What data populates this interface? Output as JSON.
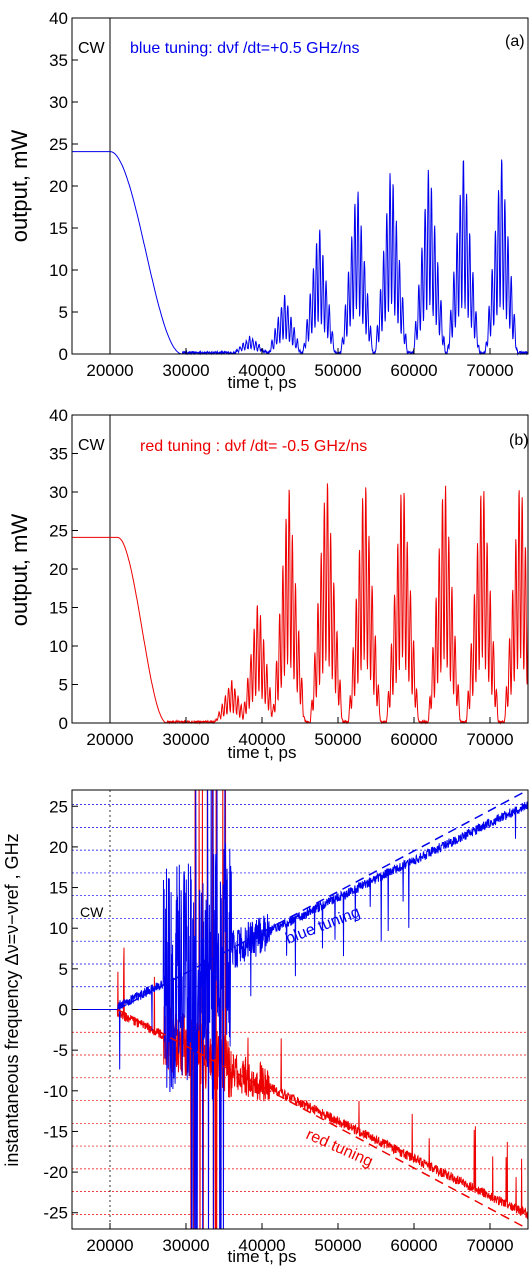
{
  "chart_data": [
    {
      "panel": "(a)",
      "type": "line",
      "xlabel": "time t, ps",
      "ylabel": "output, mW",
      "xlim": [
        15000,
        75000
      ],
      "ylim": [
        0,
        40
      ],
      "xticks": [
        20000,
        30000,
        40000,
        50000,
        60000,
        70000
      ],
      "yticks": [
        0,
        5,
        10,
        15,
        20,
        25,
        30,
        35,
        40
      ],
      "marker_x": 20000,
      "marker_label": "CW",
      "annotation": "blue tuning: dνf /dt=+0.5 GHz/ns",
      "series": [
        {
          "color": "#0000ee",
          "cw_level": 24.1,
          "drop_start": 20000,
          "drop_end": 29500,
          "dark_end": 35000,
          "peaks": [
            {
              "x": 38500,
              "y": 2
            },
            {
              "x": 43000,
              "y": 7
            },
            {
              "x": 47500,
              "y": 15.5
            },
            {
              "x": 52500,
              "y": 20.5
            },
            {
              "x": 57000,
              "y": 23
            },
            {
              "x": 62000,
              "y": 23
            },
            {
              "x": 66500,
              "y": 23.5
            },
            {
              "x": 71500,
              "y": 23.5
            }
          ]
        }
      ]
    },
    {
      "panel": "(b)",
      "type": "line",
      "xlabel": "time t, ps",
      "ylabel": "output, mW",
      "xlim": [
        15000,
        75000
      ],
      "ylim": [
        0,
        40
      ],
      "xticks": [
        20000,
        30000,
        40000,
        50000,
        60000,
        70000
      ],
      "yticks": [
        0,
        5,
        10,
        15,
        20,
        25,
        30,
        35,
        40
      ],
      "marker_x": 20000,
      "marker_label": "CW",
      "annotation": "red tuning : dνf /dt= -0.5 GHz/ns",
      "series": [
        {
          "color": "#ee0000",
          "cw_level": 24.1,
          "drop_start": 21000,
          "drop_end": 27500,
          "dark_end": 33500,
          "peaks": [
            {
              "x": 36000,
              "y": 5.5
            },
            {
              "x": 39500,
              "y": 16
            },
            {
              "x": 43500,
              "y": 31.5
            },
            {
              "x": 48500,
              "y": 33
            },
            {
              "x": 53500,
              "y": 33
            },
            {
              "x": 58500,
              "y": 33
            },
            {
              "x": 64000,
              "y": 33
            },
            {
              "x": 69000,
              "y": 33
            },
            {
              "x": 74000,
              "y": 33
            }
          ]
        }
      ]
    },
    {
      "panel": "(c)",
      "type": "line",
      "xlabel": "time t, ps",
      "ylabel": "instantaneous frequency  Δν=ν−νref , GHz",
      "xlim": [
        15000,
        75000
      ],
      "ylim": [
        -27,
        27
      ],
      "xticks": [
        20000,
        30000,
        40000,
        50000,
        60000,
        70000
      ],
      "yticks": [
        -25,
        -20,
        -15,
        -10,
        -5,
        0,
        5,
        10,
        15,
        20,
        25
      ],
      "marker_x": 20000,
      "marker_label": "CW",
      "blue_label": "blue tuning",
      "red_label": "red tuning",
      "blue_grid_levels": [
        2.8,
        5.6,
        8.4,
        11.2,
        14.0,
        16.8,
        19.6,
        22.4,
        25.2
      ],
      "red_grid_levels": [
        -2.8,
        -5.6,
        -8.4,
        -11.2,
        -14.0,
        -16.8,
        -19.6,
        -22.4,
        -25.2
      ],
      "series": [
        {
          "name": "blue tuning",
          "color": "#0000ee",
          "trend": [
            {
              "x": 21000,
              "y": 0
            },
            {
              "x": 75000,
              "y": 27
            }
          ]
        },
        {
          "name": "red tuning",
          "color": "#ee0000",
          "trend": [
            {
              "x": 21000,
              "y": 0
            },
            {
              "x": 75000,
              "y": -27
            }
          ]
        }
      ]
    }
  ]
}
